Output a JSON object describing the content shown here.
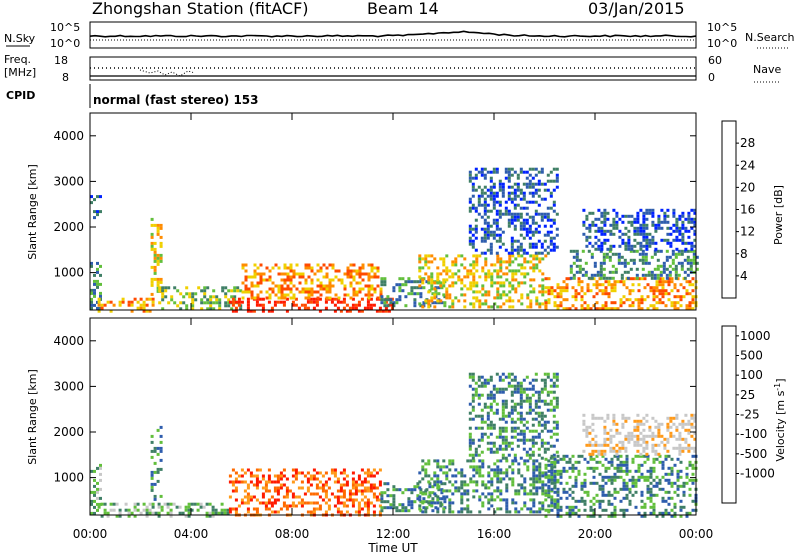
{
  "header": {
    "title": "Zhongshan Station (fitACF)",
    "beam": "Beam 14",
    "date": "03/Jan/2015"
  },
  "summary": {
    "nsky_label": "N.Sky",
    "nsearch_label": "N.Search",
    "noise_ticks_left": [
      "10^5",
      "10^0"
    ],
    "noise_ticks_right": [
      "10^5",
      "10^0"
    ],
    "freq_label_line1": "Freq.",
    "freq_label_line2": "[MHz]",
    "freq_ticks": [
      "18",
      "8"
    ],
    "nave_label": "Nave",
    "nave_ticks": [
      "60",
      "0"
    ],
    "cpid_label": "CPID",
    "cpid_text": "normal (fast stereo) 153"
  },
  "colors": {
    "power": [
      "#0022ff",
      "#2e5dad",
      "#3f7f66",
      "#62bf3c",
      "#f0d000",
      "#ff8c00",
      "#ff4a00",
      "#ff1a00"
    ],
    "velocity": [
      "#ff1a00",
      "#ff6a00",
      "#ff9a1a",
      "#c8c8c8",
      "#c8c8c8",
      "#62bf3c",
      "#3f7f66",
      "#2e5dad",
      "#0022ff"
    ]
  },
  "chart_data": [
    {
      "type": "heatmap",
      "panel": "power",
      "ylabel": "Slant Range [km]",
      "y_ticks": [
        "1000",
        "2000",
        "3000",
        "4000"
      ],
      "x_ticks": [
        "00:00",
        "04:00",
        "08:00",
        "12:00",
        "16:00",
        "20:00",
        "00:00"
      ],
      "colorbar_label": "Power [dB]",
      "colorbar_ticks": [
        "4",
        "8",
        "12",
        "16",
        "20",
        "24",
        "28"
      ],
      "ylim": [
        180,
        4500
      ],
      "xlim_hours": [
        0,
        24
      ],
      "regions": [
        {
          "t0": 0.0,
          "t1": 0.4,
          "r0": 200,
          "r1": 1300,
          "level": 2
        },
        {
          "t0": 0.0,
          "t1": 0.4,
          "r0": 2200,
          "r1": 2700,
          "level": 1
        },
        {
          "t0": 0.3,
          "t1": 2.5,
          "r0": 180,
          "r1": 450,
          "level": 5
        },
        {
          "t0": 2.4,
          "t1": 2.8,
          "r0": 500,
          "r1": 2200,
          "level": 4
        },
        {
          "t0": 2.7,
          "t1": 6.0,
          "r0": 180,
          "r1": 700,
          "level": 3
        },
        {
          "t0": 5.5,
          "t1": 12.0,
          "r0": 180,
          "r1": 450,
          "level": 7
        },
        {
          "t0": 6.0,
          "t1": 11.5,
          "r0": 450,
          "r1": 1200,
          "level": 5
        },
        {
          "t0": 11.5,
          "t1": 14.0,
          "r0": 250,
          "r1": 900,
          "level": 2
        },
        {
          "t0": 13.0,
          "t1": 18.0,
          "r0": 250,
          "r1": 1400,
          "level": 4
        },
        {
          "t0": 15.0,
          "t1": 18.5,
          "r0": 1400,
          "r1": 3300,
          "level": 1
        },
        {
          "t0": 18.0,
          "t1": 24.0,
          "r0": 180,
          "r1": 900,
          "level": 5
        },
        {
          "t0": 19.0,
          "t1": 24.0,
          "r0": 900,
          "r1": 1500,
          "level": 2
        },
        {
          "t0": 19.5,
          "t1": 24.0,
          "r0": 1500,
          "r1": 2400,
          "level": 1
        }
      ]
    },
    {
      "type": "heatmap",
      "panel": "velocity",
      "ylabel": "Slant Range [km]",
      "y_ticks": [
        "1000",
        "2000",
        "3000",
        "4000"
      ],
      "x_ticks": [
        "00:00",
        "04:00",
        "08:00",
        "12:00",
        "16:00",
        "20:00",
        "00:00"
      ],
      "xlabel": "Time UT",
      "colorbar_label": "Velocity [m s^-1]",
      "colorbar_ticks": [
        "1000",
        "500",
        "100",
        "25",
        "-25",
        "-100",
        "-500",
        "-1000"
      ],
      "ylim": [
        180,
        4500
      ],
      "xlim_hours": [
        0,
        24
      ],
      "regions": [
        {
          "t0": 0.0,
          "t1": 0.4,
          "r0": 200,
          "r1": 1300,
          "level": 5
        },
        {
          "t0": 0.3,
          "t1": 5.5,
          "r0": 180,
          "r1": 450,
          "level": 5
        },
        {
          "t0": 2.4,
          "t1": 2.8,
          "r0": 500,
          "r1": 2200,
          "level": 6
        },
        {
          "t0": 5.5,
          "t1": 11.5,
          "r0": 180,
          "r1": 1200,
          "level": 1
        },
        {
          "t0": 11.5,
          "t1": 14.0,
          "r0": 250,
          "r1": 900,
          "level": 6
        },
        {
          "t0": 13.0,
          "t1": 18.5,
          "r0": 250,
          "r1": 1400,
          "level": 6
        },
        {
          "t0": 15.0,
          "t1": 18.5,
          "r0": 1400,
          "r1": 3300,
          "level": 6
        },
        {
          "t0": 18.0,
          "t1": 24.0,
          "r0": 180,
          "r1": 1500,
          "level": 6
        },
        {
          "t0": 19.5,
          "t1": 24.0,
          "r0": 1500,
          "r1": 2400,
          "level": 3
        }
      ]
    }
  ]
}
